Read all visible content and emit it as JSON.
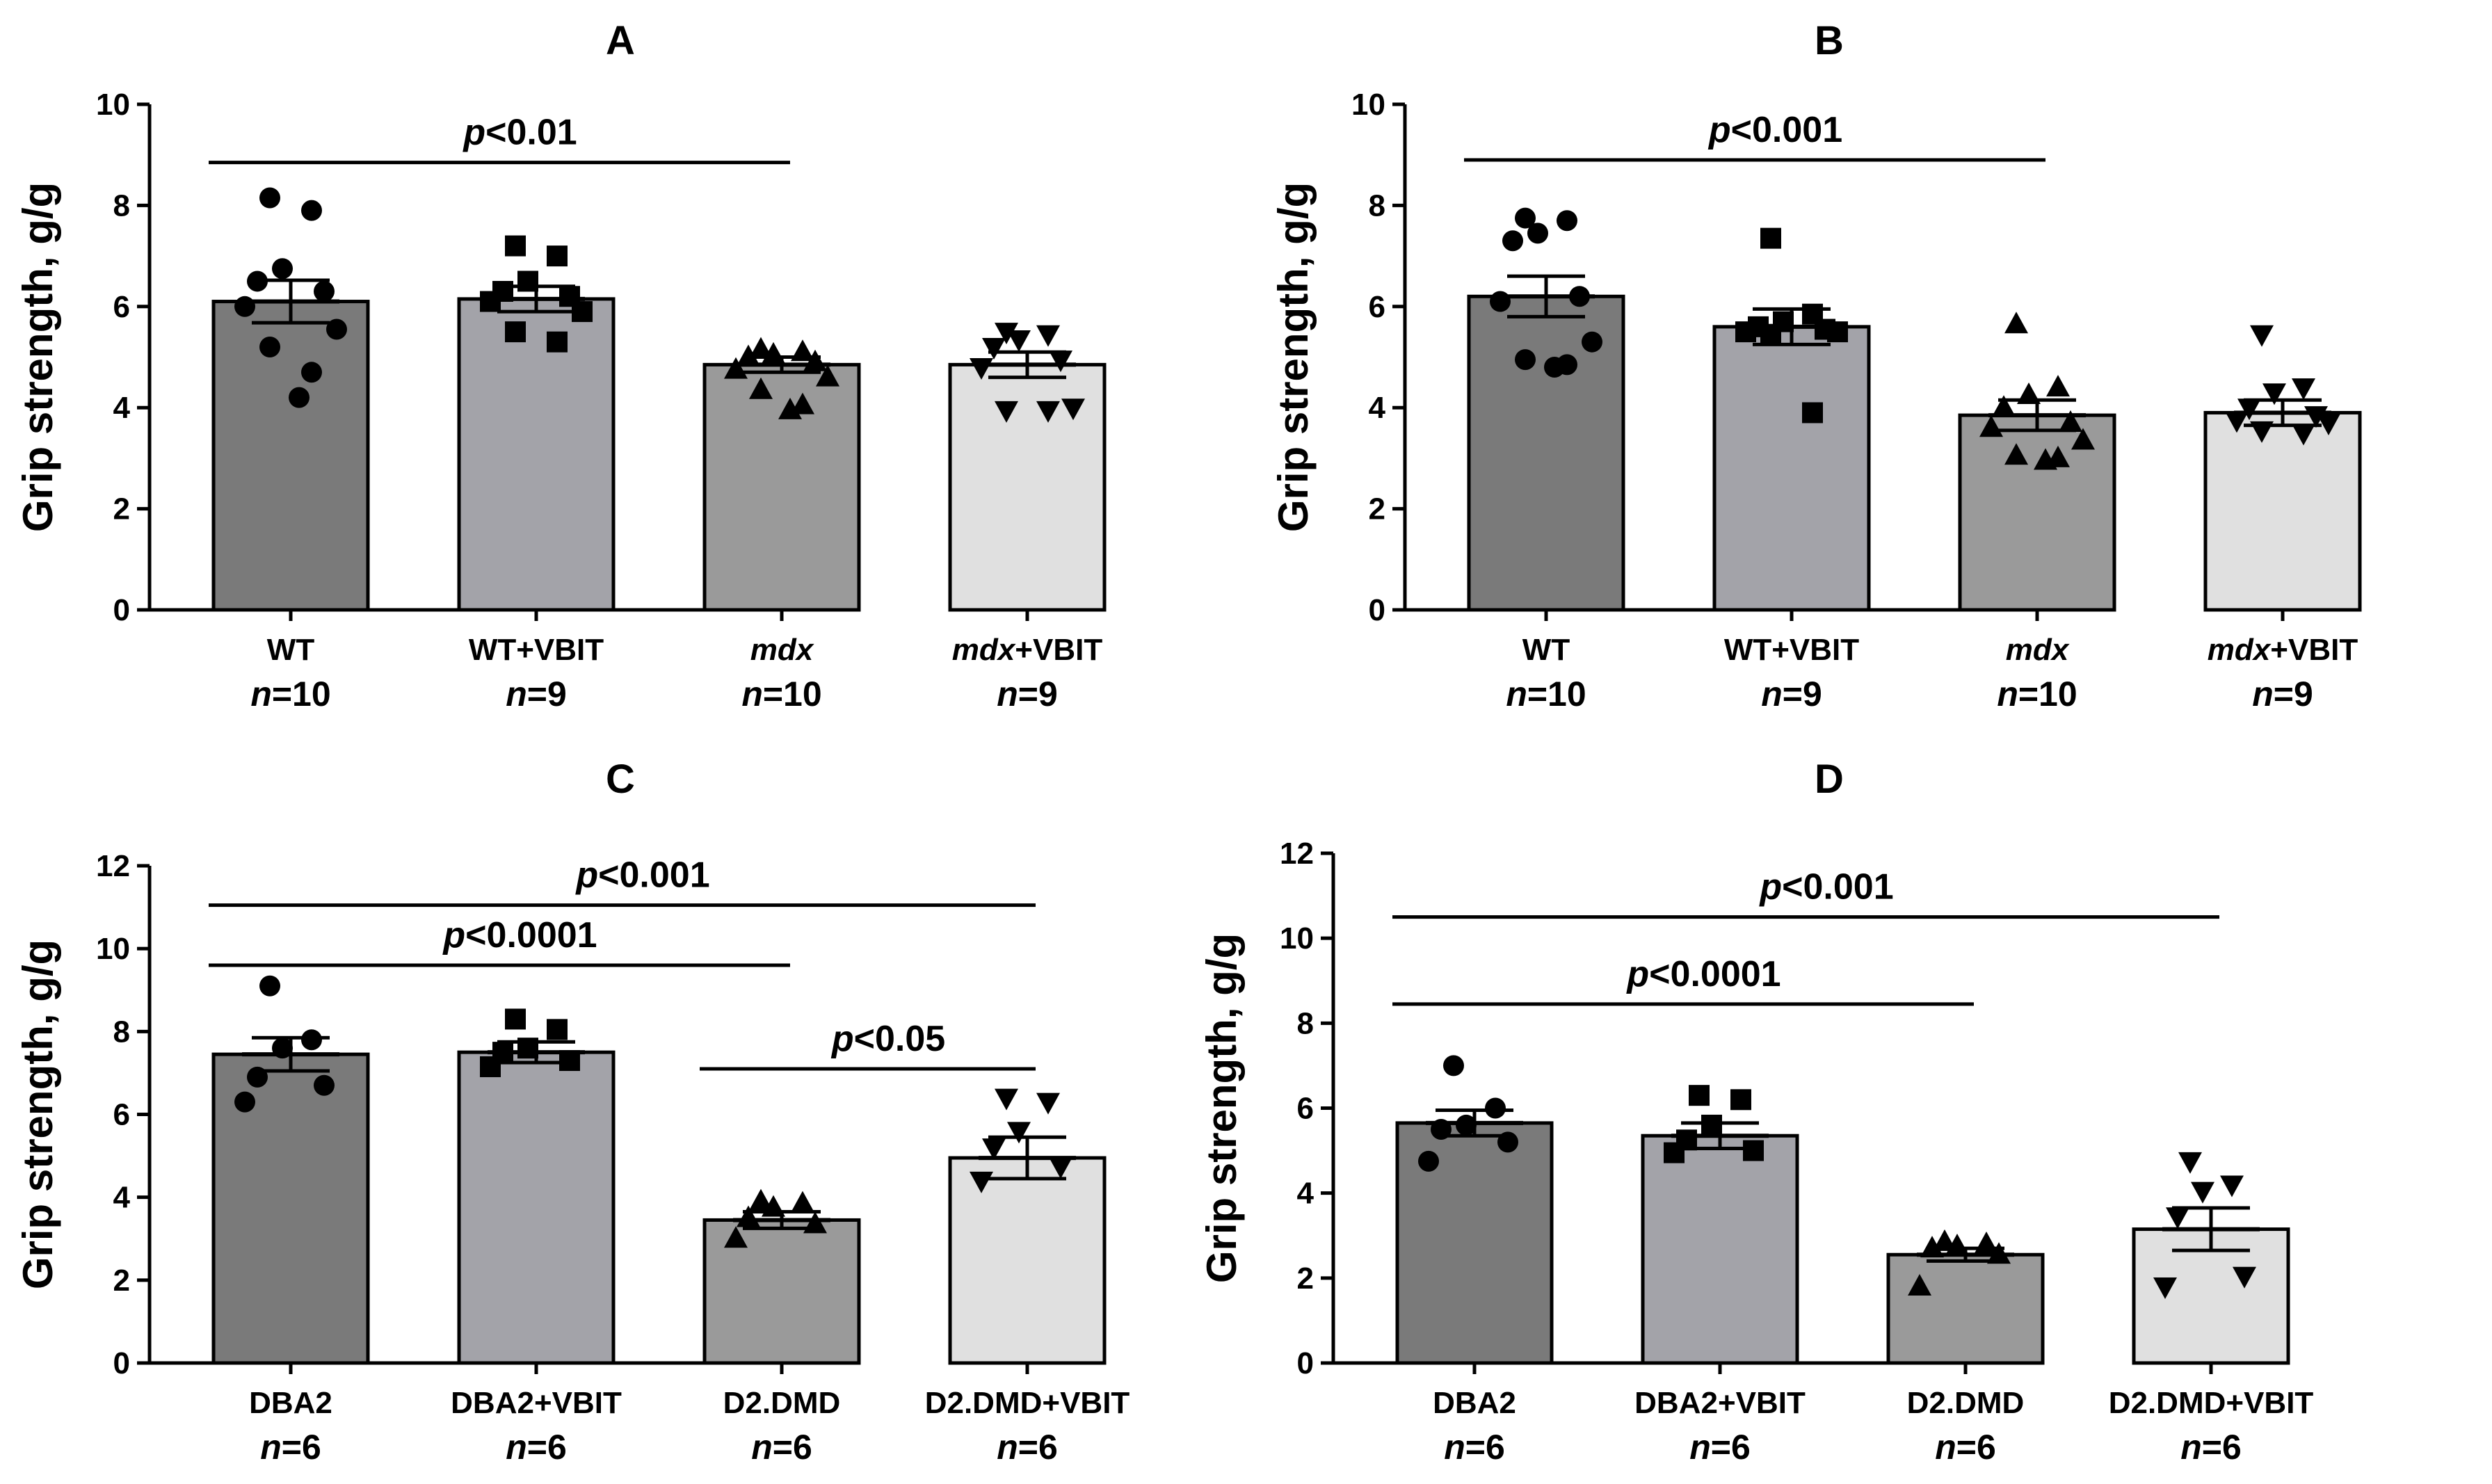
{
  "figure": {
    "colors": {
      "bar_fills": [
        "#7a7a7a",
        "#a3a3a9",
        "#9a9a9a",
        "#e0e0e0"
      ],
      "bar_stroke": "#000000",
      "point": "#000000"
    }
  },
  "chart_data": [
    {
      "type": "bar",
      "panel": "A",
      "title": "A",
      "ylabel": "Grip strength, g/g",
      "ylim": [
        0,
        10
      ],
      "yticks": [
        0,
        2,
        4,
        6,
        8,
        10
      ],
      "categories": [
        {
          "parts": [
            {
              "t": "WT",
              "i": false
            }
          ],
          "n": "10"
        },
        {
          "parts": [
            {
              "t": "WT+VBIT",
              "i": false
            }
          ],
          "n": "9"
        },
        {
          "parts": [
            {
              "t": "mdx",
              "i": true
            }
          ],
          "n": "10"
        },
        {
          "parts": [
            {
              "t": "mdx",
              "i": true
            },
            {
              "t": "+VBIT",
              "i": false
            }
          ],
          "n": "9"
        }
      ],
      "means": [
        6.1,
        6.15,
        4.85,
        4.85
      ],
      "sem": [
        0.42,
        0.25,
        0.15,
        0.25
      ],
      "markers": [
        "circle",
        "square",
        "triangle-up",
        "triangle-down"
      ],
      "points": [
        [
          8.15,
          7.9,
          6.75,
          6.5,
          6.3,
          6.0,
          5.55,
          5.2,
          4.7,
          4.2
        ],
        [
          7.2,
          7.0,
          6.5,
          6.3,
          6.2,
          6.1,
          5.9,
          5.5,
          5.3
        ],
        [
          5.15,
          5.1,
          5.05,
          5.0,
          4.9,
          4.75,
          4.6,
          4.35,
          4.05,
          3.95
        ],
        [
          5.5,
          5.45,
          5.35,
          5.2,
          4.95,
          4.8,
          4.0,
          3.95,
          3.95
        ]
      ],
      "comparisons": [
        {
          "from": 0,
          "to": 2,
          "y": 8.85,
          "label": "p<0.01"
        }
      ]
    },
    {
      "type": "bar",
      "panel": "B",
      "title": "B",
      "ylabel": "Grip strength, g/g",
      "ylim": [
        0,
        10
      ],
      "yticks": [
        0,
        2,
        4,
        6,
        8,
        10
      ],
      "categories": [
        {
          "parts": [
            {
              "t": "WT",
              "i": false
            }
          ],
          "n": "10"
        },
        {
          "parts": [
            {
              "t": "WT+VBIT",
              "i": false
            }
          ],
          "n": "9"
        },
        {
          "parts": [
            {
              "t": "mdx",
              "i": true
            }
          ],
          "n": "10"
        },
        {
          "parts": [
            {
              "t": "mdx",
              "i": true
            },
            {
              "t": "+VBIT",
              "i": false
            }
          ],
          "n": "9"
        }
      ],
      "means": [
        6.2,
        5.6,
        3.85,
        3.9
      ],
      "sem": [
        0.4,
        0.35,
        0.3,
        0.25
      ],
      "markers": [
        "circle",
        "square",
        "triangle-up",
        "triangle-down"
      ],
      "points": [
        [
          7.75,
          7.7,
          7.45,
          7.3,
          6.2,
          6.1,
          5.3,
          4.95,
          4.85,
          4.8
        ],
        [
          7.35,
          5.85,
          5.7,
          5.6,
          5.55,
          5.5,
          5.5,
          5.45,
          3.9
        ],
        [
          5.65,
          4.4,
          4.25,
          4.0,
          3.7,
          3.6,
          3.35,
          3.05,
          3.0,
          2.95
        ],
        [
          5.45,
          4.4,
          4.3,
          4.0,
          3.85,
          3.75,
          3.7,
          3.55,
          3.5
        ]
      ],
      "comparisons": [
        {
          "from": 0,
          "to": 2,
          "y": 8.9,
          "label": "p<0.001"
        }
      ]
    },
    {
      "type": "bar",
      "panel": "C",
      "title": "C",
      "ylabel": "Grip strength, g/g",
      "ylim": [
        0,
        12
      ],
      "yticks": [
        0,
        2,
        4,
        6,
        8,
        10,
        12
      ],
      "categories": [
        {
          "parts": [
            {
              "t": "DBA2",
              "i": false
            }
          ],
          "n": "6"
        },
        {
          "parts": [
            {
              "t": "DBA2+VBIT",
              "i": false
            }
          ],
          "n": "6"
        },
        {
          "parts": [
            {
              "t": "D2.DMD",
              "i": false
            }
          ],
          "n": "6"
        },
        {
          "parts": [
            {
              "t": "D2.DMD+VBIT",
              "i": false
            }
          ],
          "n": "6"
        }
      ],
      "means": [
        7.45,
        7.5,
        3.45,
        4.95
      ],
      "sem": [
        0.4,
        0.25,
        0.2,
        0.5
      ],
      "markers": [
        "circle",
        "square",
        "triangle-up",
        "triangle-down"
      ],
      "points": [
        [
          9.1,
          7.8,
          7.6,
          6.9,
          6.7,
          6.3
        ],
        [
          8.3,
          8.05,
          7.6,
          7.5,
          7.3,
          7.15
        ],
        [
          3.9,
          3.85,
          3.75,
          3.5,
          3.35,
          3.0
        ],
        [
          6.4,
          6.3,
          5.6,
          5.2,
          4.75,
          4.4
        ]
      ],
      "comparisons": [
        {
          "from": 0,
          "to": 3,
          "y": 11.05,
          "label": "p<0.001"
        },
        {
          "from": 0,
          "to": 2,
          "y": 9.6,
          "label": "p<0.0001"
        },
        {
          "from": 2,
          "to": 3,
          "y": 7.1,
          "label": "p<0.05"
        }
      ]
    },
    {
      "type": "bar",
      "panel": "D",
      "title": "D",
      "ylabel": "Grip strength, g/g",
      "ylim": [
        0,
        12
      ],
      "yticks": [
        0,
        2,
        4,
        6,
        8,
        10,
        12
      ],
      "categories": [
        {
          "parts": [
            {
              "t": "DBA2",
              "i": false
            }
          ],
          "n": "6"
        },
        {
          "parts": [
            {
              "t": "DBA2+VBIT",
              "i": false
            }
          ],
          "n": "6"
        },
        {
          "parts": [
            {
              "t": "D2.DMD",
              "i": false
            }
          ],
          "n": "6"
        },
        {
          "parts": [
            {
              "t": "D2.DMD+VBIT",
              "i": false
            }
          ],
          "n": "6"
        }
      ],
      "means": [
        5.65,
        5.35,
        2.55,
        3.15
      ],
      "sem": [
        0.3,
        0.3,
        0.15,
        0.5
      ],
      "markers": [
        "circle",
        "square",
        "triangle-up",
        "triangle-down"
      ],
      "points": [
        [
          7.0,
          6.0,
          5.6,
          5.5,
          5.2,
          4.75
        ],
        [
          6.3,
          6.2,
          5.6,
          5.25,
          5.0,
          4.95
        ],
        [
          2.85,
          2.8,
          2.75,
          2.7,
          2.55,
          1.8
        ],
        [
          4.75,
          4.2,
          4.05,
          3.45,
          2.05,
          1.8
        ]
      ],
      "comparisons": [
        {
          "from": 0,
          "to": 3,
          "y": 10.5,
          "label": "p<0.001"
        },
        {
          "from": 0,
          "to": 2,
          "y": 8.45,
          "label": "p<0.0001"
        }
      ]
    }
  ]
}
